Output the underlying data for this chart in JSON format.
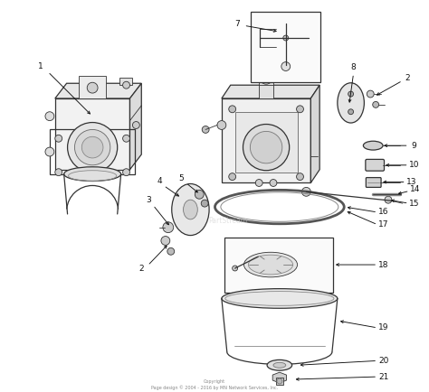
{
  "background_color": "#ffffff",
  "line_color": "#333333",
  "label_color": "#111111",
  "arrow_color": "#111111",
  "copyright_text": "Copyright\nPage design © 2004 - 2016 by MN Network Services, Inc.",
  "watermark_text": "PartStream",
  "fig_width": 4.74,
  "fig_height": 4.34,
  "dpi": 100
}
